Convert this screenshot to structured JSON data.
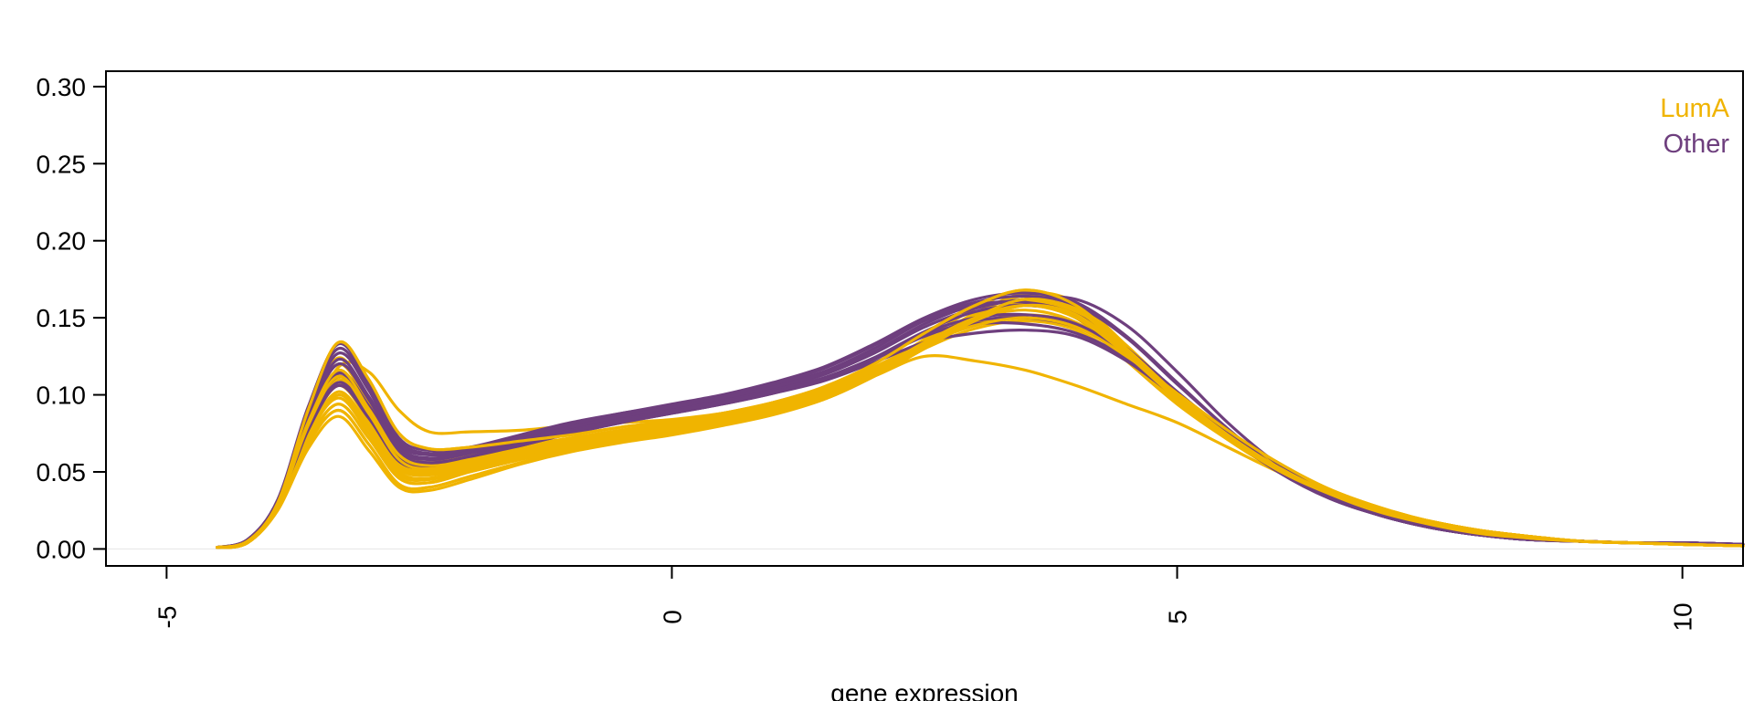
{
  "chart_data": {
    "type": "line",
    "title": "",
    "xlabel": "gene expression",
    "ylabel": "",
    "xlim": [
      -5.6,
      10.6
    ],
    "ylim": [
      -0.011,
      0.31
    ],
    "x_ticks": [
      -5,
      0,
      5,
      10
    ],
    "x_tick_labels": [
      "-5",
      "0",
      "5",
      "10"
    ],
    "y_ticks": [
      0.0,
      0.05,
      0.1,
      0.15,
      0.2,
      0.25,
      0.3
    ],
    "y_tick_labels": [
      "0.00",
      "0.05",
      "0.10",
      "0.15",
      "0.20",
      "0.25",
      "0.30"
    ],
    "grid": false,
    "legend_position": "top-right",
    "colors": {
      "LumA": "#F0B400",
      "Other": "#6E3F7E"
    },
    "legend": [
      {
        "label": "LumA",
        "color": "#F0B400"
      },
      {
        "label": "Other",
        "color": "#6E3F7E"
      }
    ],
    "x": [
      -4.5,
      -4.2,
      -3.9,
      -3.6,
      -3.3,
      -3.0,
      -2.7,
      -2.4,
      -2.0,
      -1.5,
      -1.0,
      -0.5,
      0.0,
      0.5,
      1.0,
      1.5,
      2.0,
      2.5,
      3.0,
      3.5,
      4.0,
      4.5,
      5.0,
      5.5,
      6.0,
      6.5,
      7.0,
      7.5,
      8.0,
      8.5,
      9.0,
      9.5,
      10.0,
      10.6
    ],
    "series": [
      {
        "group": "LumA",
        "values": [
          0.001,
          0.005,
          0.028,
          0.075,
          0.118,
          0.115,
          0.09,
          0.076,
          0.076,
          0.077,
          0.08,
          0.082,
          0.084,
          0.088,
          0.093,
          0.1,
          0.112,
          0.125,
          0.122,
          0.116,
          0.106,
          0.094,
          0.082,
          0.066,
          0.05,
          0.036,
          0.025,
          0.017,
          0.011,
          0.007,
          0.005,
          0.004,
          0.003,
          0.002
        ]
      },
      {
        "group": "LumA",
        "values": [
          0.001,
          0.005,
          0.03,
          0.09,
          0.134,
          0.11,
          0.075,
          0.065,
          0.066,
          0.07,
          0.074,
          0.079,
          0.083,
          0.088,
          0.095,
          0.105,
          0.12,
          0.14,
          0.158,
          0.168,
          0.158,
          0.13,
          0.1,
          0.074,
          0.052,
          0.036,
          0.024,
          0.016,
          0.01,
          0.007,
          0.005,
          0.004,
          0.003,
          0.002
        ]
      },
      {
        "group": "LumA",
        "values": [
          0.001,
          0.004,
          0.025,
          0.065,
          0.086,
          0.064,
          0.04,
          0.038,
          0.045,
          0.055,
          0.063,
          0.069,
          0.074,
          0.08,
          0.087,
          0.097,
          0.112,
          0.13,
          0.148,
          0.16,
          0.152,
          0.125,
          0.098,
          0.074,
          0.053,
          0.037,
          0.026,
          0.018,
          0.012,
          0.008,
          0.005,
          0.004,
          0.003,
          0.002
        ]
      },
      {
        "group": "LumA",
        "values": [
          0.001,
          0.004,
          0.026,
          0.072,
          0.1,
          0.078,
          0.05,
          0.046,
          0.052,
          0.06,
          0.067,
          0.073,
          0.078,
          0.084,
          0.091,
          0.1,
          0.114,
          0.132,
          0.152,
          0.164,
          0.15,
          0.122,
          0.094,
          0.071,
          0.051,
          0.036,
          0.025,
          0.017,
          0.011,
          0.007,
          0.005,
          0.004,
          0.003,
          0.002
        ]
      },
      {
        "group": "LumA",
        "values": [
          0.001,
          0.005,
          0.028,
          0.08,
          0.112,
          0.088,
          0.058,
          0.052,
          0.057,
          0.064,
          0.07,
          0.076,
          0.08,
          0.086,
          0.093,
          0.102,
          0.116,
          0.134,
          0.15,
          0.158,
          0.15,
          0.126,
          0.097,
          0.072,
          0.051,
          0.036,
          0.025,
          0.017,
          0.011,
          0.007,
          0.005,
          0.004,
          0.003,
          0.002
        ]
      },
      {
        "group": "LumA",
        "values": [
          0.001,
          0.005,
          0.027,
          0.076,
          0.106,
          0.083,
          0.054,
          0.049,
          0.054,
          0.062,
          0.069,
          0.075,
          0.08,
          0.086,
          0.093,
          0.102,
          0.115,
          0.133,
          0.152,
          0.166,
          0.16,
          0.132,
          0.101,
          0.075,
          0.053,
          0.037,
          0.026,
          0.017,
          0.011,
          0.007,
          0.005,
          0.004,
          0.003,
          0.002
        ]
      },
      {
        "group": "LumA",
        "values": [
          0.001,
          0.005,
          0.029,
          0.084,
          0.12,
          0.094,
          0.063,
          0.056,
          0.06,
          0.066,
          0.072,
          0.077,
          0.081,
          0.087,
          0.094,
          0.103,
          0.117,
          0.135,
          0.149,
          0.155,
          0.147,
          0.124,
          0.096,
          0.071,
          0.051,
          0.036,
          0.025,
          0.017,
          0.011,
          0.007,
          0.005,
          0.004,
          0.003,
          0.002
        ]
      },
      {
        "group": "LumA",
        "values": [
          0.001,
          0.004,
          0.026,
          0.07,
          0.094,
          0.072,
          0.046,
          0.043,
          0.05,
          0.058,
          0.065,
          0.071,
          0.076,
          0.082,
          0.089,
          0.098,
          0.113,
          0.131,
          0.15,
          0.162,
          0.155,
          0.128,
          0.099,
          0.074,
          0.053,
          0.037,
          0.026,
          0.018,
          0.012,
          0.008,
          0.005,
          0.004,
          0.003,
          0.002
        ]
      },
      {
        "group": "LumA",
        "values": [
          0.001,
          0.005,
          0.028,
          0.079,
          0.11,
          0.086,
          0.057,
          0.051,
          0.056,
          0.063,
          0.07,
          0.075,
          0.08,
          0.085,
          0.092,
          0.1,
          0.113,
          0.13,
          0.143,
          0.148,
          0.142,
          0.122,
          0.097,
          0.073,
          0.052,
          0.037,
          0.026,
          0.017,
          0.011,
          0.007,
          0.005,
          0.004,
          0.003,
          0.002
        ]
      },
      {
        "group": "LumA",
        "values": [
          0.001,
          0.005,
          0.027,
          0.074,
          0.102,
          0.08,
          0.052,
          0.048,
          0.053,
          0.061,
          0.068,
          0.074,
          0.079,
          0.085,
          0.092,
          0.101,
          0.116,
          0.136,
          0.156,
          0.168,
          0.156,
          0.128,
          0.098,
          0.073,
          0.052,
          0.036,
          0.025,
          0.017,
          0.011,
          0.007,
          0.005,
          0.004,
          0.003,
          0.002
        ]
      },
      {
        "group": "LumA",
        "values": [
          0.001,
          0.005,
          0.028,
          0.082,
          0.116,
          0.091,
          0.061,
          0.054,
          0.058,
          0.065,
          0.071,
          0.077,
          0.081,
          0.087,
          0.094,
          0.103,
          0.117,
          0.133,
          0.145,
          0.15,
          0.144,
          0.125,
          0.101,
          0.077,
          0.056,
          0.039,
          0.027,
          0.018,
          0.012,
          0.008,
          0.005,
          0.004,
          0.003,
          0.002
        ]
      },
      {
        "group": "LumA",
        "values": [
          0.001,
          0.004,
          0.027,
          0.073,
          0.098,
          0.075,
          0.048,
          0.045,
          0.051,
          0.059,
          0.066,
          0.072,
          0.077,
          0.083,
          0.09,
          0.099,
          0.114,
          0.133,
          0.153,
          0.165,
          0.158,
          0.131,
          0.101,
          0.075,
          0.054,
          0.038,
          0.026,
          0.018,
          0.012,
          0.008,
          0.005,
          0.004,
          0.003,
          0.002
        ]
      },
      {
        "group": "LumA",
        "values": [
          0.001,
          0.005,
          0.029,
          0.086,
          0.124,
          0.097,
          0.066,
          0.058,
          0.061,
          0.067,
          0.072,
          0.077,
          0.082,
          0.088,
          0.095,
          0.104,
          0.118,
          0.134,
          0.146,
          0.152,
          0.146,
          0.125,
          0.098,
          0.073,
          0.052,
          0.036,
          0.025,
          0.017,
          0.011,
          0.007,
          0.005,
          0.004,
          0.003,
          0.002
        ]
      },
      {
        "group": "LumA",
        "values": [
          0.001,
          0.004,
          0.026,
          0.068,
          0.09,
          0.068,
          0.042,
          0.04,
          0.047,
          0.056,
          0.064,
          0.07,
          0.075,
          0.081,
          0.088,
          0.097,
          0.112,
          0.13,
          0.148,
          0.158,
          0.152,
          0.127,
          0.099,
          0.074,
          0.053,
          0.037,
          0.026,
          0.018,
          0.012,
          0.008,
          0.005,
          0.004,
          0.003,
          0.002
        ]
      },
      {
        "group": "LumA",
        "values": [
          0.001,
          0.005,
          0.027,
          0.077,
          0.108,
          0.085,
          0.056,
          0.05,
          0.055,
          0.063,
          0.069,
          0.075,
          0.08,
          0.086,
          0.093,
          0.102,
          0.116,
          0.134,
          0.151,
          0.161,
          0.154,
          0.129,
          0.1,
          0.075,
          0.054,
          0.038,
          0.026,
          0.018,
          0.012,
          0.008,
          0.005,
          0.004,
          0.003,
          0.002
        ]
      },
      {
        "group": "Other",
        "values": [
          0.001,
          0.006,
          0.032,
          0.092,
          0.133,
          0.108,
          0.072,
          0.064,
          0.066,
          0.074,
          0.082,
          0.088,
          0.094,
          0.1,
          0.108,
          0.118,
          0.133,
          0.15,
          0.162,
          0.166,
          0.16,
          0.138,
          0.108,
          0.078,
          0.052,
          0.034,
          0.022,
          0.014,
          0.009,
          0.006,
          0.005,
          0.004,
          0.004,
          0.003
        ]
      },
      {
        "group": "Other",
        "values": [
          0.001,
          0.006,
          0.031,
          0.088,
          0.127,
          0.103,
          0.068,
          0.061,
          0.064,
          0.072,
          0.08,
          0.087,
          0.093,
          0.099,
          0.106,
          0.115,
          0.13,
          0.148,
          0.158,
          0.16,
          0.152,
          0.13,
          0.102,
          0.075,
          0.051,
          0.034,
          0.022,
          0.014,
          0.009,
          0.006,
          0.005,
          0.004,
          0.004,
          0.003
        ]
      },
      {
        "group": "Other",
        "values": [
          0.001,
          0.005,
          0.03,
          0.085,
          0.12,
          0.097,
          0.064,
          0.058,
          0.062,
          0.07,
          0.078,
          0.085,
          0.091,
          0.097,
          0.104,
          0.113,
          0.127,
          0.144,
          0.156,
          0.162,
          0.162,
          0.145,
          0.115,
          0.082,
          0.055,
          0.036,
          0.023,
          0.015,
          0.01,
          0.006,
          0.005,
          0.004,
          0.004,
          0.003
        ]
      },
      {
        "group": "Other",
        "values": [
          0.001,
          0.005,
          0.029,
          0.08,
          0.112,
          0.09,
          0.06,
          0.055,
          0.059,
          0.068,
          0.076,
          0.083,
          0.089,
          0.095,
          0.102,
          0.11,
          0.123,
          0.138,
          0.148,
          0.15,
          0.144,
          0.126,
          0.1,
          0.074,
          0.051,
          0.034,
          0.022,
          0.014,
          0.009,
          0.006,
          0.005,
          0.004,
          0.004,
          0.003
        ]
      },
      {
        "group": "Other",
        "values": [
          0.001,
          0.005,
          0.028,
          0.077,
          0.106,
          0.085,
          0.057,
          0.053,
          0.058,
          0.067,
          0.075,
          0.082,
          0.088,
          0.094,
          0.101,
          0.109,
          0.121,
          0.134,
          0.14,
          0.142,
          0.138,
          0.122,
          0.098,
          0.073,
          0.05,
          0.033,
          0.022,
          0.014,
          0.009,
          0.006,
          0.005,
          0.004,
          0.004,
          0.003
        ]
      },
      {
        "group": "Other",
        "values": [
          0.001,
          0.006,
          0.031,
          0.09,
          0.13,
          0.105,
          0.07,
          0.062,
          0.065,
          0.073,
          0.081,
          0.088,
          0.093,
          0.099,
          0.107,
          0.117,
          0.132,
          0.149,
          0.16,
          0.164,
          0.158,
          0.137,
          0.107,
          0.078,
          0.052,
          0.034,
          0.022,
          0.014,
          0.009,
          0.006,
          0.005,
          0.004,
          0.004,
          0.003
        ]
      },
      {
        "group": "Other",
        "values": [
          0.001,
          0.005,
          0.029,
          0.082,
          0.115,
          0.093,
          0.062,
          0.056,
          0.06,
          0.069,
          0.077,
          0.084,
          0.09,
          0.096,
          0.103,
          0.111,
          0.124,
          0.139,
          0.146,
          0.146,
          0.14,
          0.124,
          0.099,
          0.073,
          0.05,
          0.033,
          0.022,
          0.014,
          0.009,
          0.006,
          0.005,
          0.004,
          0.004,
          0.003
        ]
      },
      {
        "group": "Other",
        "values": [
          0.001,
          0.005,
          0.028,
          0.078,
          0.108,
          0.087,
          0.058,
          0.054,
          0.058,
          0.067,
          0.075,
          0.082,
          0.088,
          0.094,
          0.101,
          0.11,
          0.124,
          0.141,
          0.154,
          0.158,
          0.152,
          0.13,
          0.102,
          0.075,
          0.051,
          0.034,
          0.022,
          0.014,
          0.009,
          0.006,
          0.005,
          0.004,
          0.004,
          0.003
        ]
      },
      {
        "group": "Other",
        "values": [
          0.001,
          0.006,
          0.03,
          0.086,
          0.123,
          0.099,
          0.066,
          0.059,
          0.063,
          0.071,
          0.079,
          0.086,
          0.092,
          0.098,
          0.105,
          0.114,
          0.128,
          0.146,
          0.158,
          0.16,
          0.15,
          0.127,
          0.1,
          0.074,
          0.051,
          0.034,
          0.022,
          0.014,
          0.009,
          0.006,
          0.005,
          0.004,
          0.004,
          0.003
        ]
      },
      {
        "group": "Other",
        "values": [
          0.001,
          0.005,
          0.029,
          0.081,
          0.114,
          0.092,
          0.061,
          0.056,
          0.06,
          0.068,
          0.076,
          0.083,
          0.089,
          0.095,
          0.102,
          0.11,
          0.124,
          0.14,
          0.15,
          0.152,
          0.146,
          0.127,
          0.101,
          0.075,
          0.051,
          0.034,
          0.022,
          0.014,
          0.009,
          0.006,
          0.005,
          0.004,
          0.004,
          0.003
        ]
      }
    ]
  }
}
